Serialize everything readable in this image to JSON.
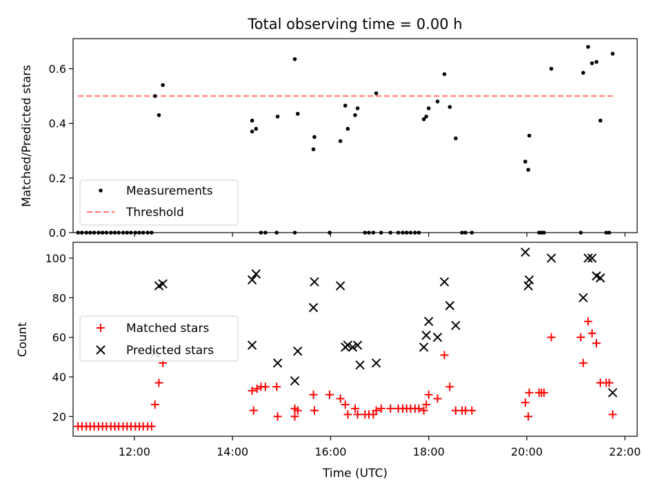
{
  "chart_data": {
    "title": "Total observing time = 0.00 h",
    "xlabel": "Time (UTC)",
    "x_tick_labels": [
      "12:00",
      "14:00",
      "16:00",
      "18:00",
      "20:00",
      "22:00"
    ],
    "x_ticks_hours": [
      12,
      14,
      16,
      18,
      20,
      22
    ],
    "xlim_hours": [
      10.75,
      22.25
    ],
    "panels": [
      {
        "id": "ratio",
        "type": "scatter",
        "ylabel": "Matched/Predicted stars",
        "ylim": [
          0,
          0.71
        ],
        "y_ticks": [
          0.0,
          0.2,
          0.4,
          0.6
        ],
        "y_tick_labels": [
          "0.0",
          "0.2",
          "0.4",
          "0.6"
        ],
        "legend_position": "lower-left",
        "series": [
          {
            "name": "Measurements",
            "marker": "dot",
            "color": "#000000",
            "points": [
              [
                10.85,
                0
              ],
              [
                10.93,
                0
              ],
              [
                11.02,
                0
              ],
              [
                11.1,
                0
              ],
              [
                11.18,
                0
              ],
              [
                11.27,
                0
              ],
              [
                11.35,
                0
              ],
              [
                11.43,
                0
              ],
              [
                11.52,
                0
              ],
              [
                11.6,
                0
              ],
              [
                11.68,
                0
              ],
              [
                11.77,
                0
              ],
              [
                11.85,
                0
              ],
              [
                11.93,
                0
              ],
              [
                12.02,
                0
              ],
              [
                12.1,
                0
              ],
              [
                12.18,
                0
              ],
              [
                12.27,
                0
              ],
              [
                12.35,
                0
              ],
              [
                12.42,
                0.5
              ],
              [
                12.5,
                0.43
              ],
              [
                12.58,
                0.54
              ],
              [
                14.4,
                0.41
              ],
              [
                14.4,
                0.37
              ],
              [
                14.48,
                0.38
              ],
              [
                14.58,
                0
              ],
              [
                14.67,
                0
              ],
              [
                14.9,
                0
              ],
              [
                14.92,
                0.425
              ],
              [
                15.27,
                0
              ],
              [
                15.27,
                0.635
              ],
              [
                15.33,
                0.435
              ],
              [
                15.65,
                0.305
              ],
              [
                15.67,
                0.35
              ],
              [
                15.98,
                0
              ],
              [
                16.2,
                0.335
              ],
              [
                16.3,
                0.465
              ],
              [
                16.35,
                0.38
              ],
              [
                16.5,
                0.43
              ],
              [
                16.55,
                0.455
              ],
              [
                16.7,
                0
              ],
              [
                16.78,
                0
              ],
              [
                16.87,
                0
              ],
              [
                16.93,
                0.51
              ],
              [
                17.03,
                0
              ],
              [
                17.22,
                0
              ],
              [
                17.38,
                0
              ],
              [
                17.47,
                0
              ],
              [
                17.55,
                0
              ],
              [
                17.63,
                0
              ],
              [
                17.72,
                0
              ],
              [
                17.8,
                0
              ],
              [
                17.9,
                0.415
              ],
              [
                17.95,
                0.425
              ],
              [
                18.0,
                0.455
              ],
              [
                18.18,
                0.48
              ],
              [
                18.32,
                0.58
              ],
              [
                18.43,
                0.46
              ],
              [
                18.55,
                0.345
              ],
              [
                18.68,
                0
              ],
              [
                18.75,
                0
              ],
              [
                18.88,
                0
              ],
              [
                19.97,
                0.26
              ],
              [
                20.03,
                0.23
              ],
              [
                20.05,
                0.355
              ],
              [
                20.25,
                0
              ],
              [
                20.3,
                0
              ],
              [
                20.35,
                0
              ],
              [
                20.5,
                0.6
              ],
              [
                21.1,
                0
              ],
              [
                21.15,
                0.585
              ],
              [
                21.25,
                0.68
              ],
              [
                21.33,
                0.62
              ],
              [
                21.42,
                0.625
              ],
              [
                21.5,
                0.41
              ],
              [
                21.62,
                0
              ],
              [
                21.68,
                0
              ],
              [
                21.75,
                0.655
              ]
            ]
          },
          {
            "name": "Threshold",
            "style": "dashed-line",
            "color": "#ff7070",
            "x": [
              10.85,
              21.75
            ],
            "y": [
              0.5,
              0.5
            ]
          }
        ]
      },
      {
        "id": "count",
        "type": "scatter",
        "ylabel": "Count",
        "ylim": [
          10,
          108
        ],
        "y_ticks": [
          20,
          40,
          60,
          80,
          100
        ],
        "y_tick_labels": [
          "20",
          "40",
          "60",
          "80",
          "100"
        ],
        "legend_position": "center-left",
        "series": [
          {
            "name": "Matched stars",
            "marker": "plus",
            "color": "#ff0000",
            "points": [
              [
                10.85,
                15
              ],
              [
                10.93,
                15
              ],
              [
                11.02,
                15
              ],
              [
                11.1,
                15
              ],
              [
                11.18,
                15
              ],
              [
                11.27,
                15
              ],
              [
                11.35,
                15
              ],
              [
                11.43,
                15
              ],
              [
                11.52,
                15
              ],
              [
                11.6,
                15
              ],
              [
                11.68,
                15
              ],
              [
                11.77,
                15
              ],
              [
                11.85,
                15
              ],
              [
                11.93,
                15
              ],
              [
                12.02,
                15
              ],
              [
                12.1,
                15
              ],
              [
                12.18,
                15
              ],
              [
                12.27,
                15
              ],
              [
                12.35,
                15
              ],
              [
                12.42,
                26
              ],
              [
                12.5,
                37
              ],
              [
                12.58,
                47
              ],
              [
                14.4,
                33
              ],
              [
                14.43,
                23
              ],
              [
                14.5,
                34
              ],
              [
                14.58,
                35
              ],
              [
                14.67,
                35
              ],
              [
                14.9,
                35
              ],
              [
                14.92,
                20
              ],
              [
                15.27,
                20
              ],
              [
                15.27,
                24
              ],
              [
                15.33,
                23
              ],
              [
                15.65,
                31
              ],
              [
                15.67,
                23
              ],
              [
                15.98,
                31
              ],
              [
                16.2,
                29
              ],
              [
                16.3,
                26
              ],
              [
                16.35,
                21
              ],
              [
                16.5,
                24
              ],
              [
                16.55,
                21
              ],
              [
                16.7,
                21
              ],
              [
                16.78,
                21
              ],
              [
                16.87,
                21
              ],
              [
                16.93,
                23
              ],
              [
                17.03,
                24
              ],
              [
                17.22,
                24
              ],
              [
                17.38,
                24
              ],
              [
                17.47,
                24
              ],
              [
                17.55,
                24
              ],
              [
                17.63,
                24
              ],
              [
                17.72,
                24
              ],
              [
                17.8,
                24
              ],
              [
                17.9,
                23
              ],
              [
                17.95,
                26
              ],
              [
                18.0,
                31
              ],
              [
                18.18,
                29
              ],
              [
                18.32,
                51
              ],
              [
                18.43,
                35
              ],
              [
                18.55,
                23
              ],
              [
                18.68,
                23
              ],
              [
                18.75,
                23
              ],
              [
                18.88,
                23
              ],
              [
                19.97,
                27
              ],
              [
                20.03,
                20
              ],
              [
                20.05,
                32
              ],
              [
                20.25,
                32
              ],
              [
                20.3,
                32
              ],
              [
                20.35,
                32
              ],
              [
                20.5,
                60
              ],
              [
                21.1,
                60
              ],
              [
                21.15,
                47
              ],
              [
                21.25,
                68
              ],
              [
                21.33,
                62
              ],
              [
                21.42,
                57
              ],
              [
                21.5,
                37
              ],
              [
                21.62,
                37
              ],
              [
                21.68,
                37
              ],
              [
                21.75,
                21
              ]
            ]
          },
          {
            "name": "Predicted stars",
            "marker": "x",
            "color": "#000000",
            "points": [
              [
                12.42,
                52
              ],
              [
                12.5,
                86
              ],
              [
                12.58,
                87
              ],
              [
                14.4,
                89
              ],
              [
                14.4,
                56
              ],
              [
                14.48,
                92
              ],
              [
                14.92,
                47
              ],
              [
                15.27,
                38
              ],
              [
                15.33,
                53
              ],
              [
                15.65,
                75
              ],
              [
                15.67,
                88
              ],
              [
                16.2,
                86
              ],
              [
                16.3,
                55
              ],
              [
                16.35,
                56
              ],
              [
                16.45,
                55
              ],
              [
                16.55,
                56
              ],
              [
                16.6,
                46
              ],
              [
                16.93,
                47
              ],
              [
                17.9,
                55
              ],
              [
                17.95,
                61
              ],
              [
                18.0,
                68
              ],
              [
                18.18,
                60
              ],
              [
                18.32,
                88
              ],
              [
                18.43,
                76
              ],
              [
                18.55,
                66
              ],
              [
                19.97,
                103
              ],
              [
                20.03,
                86
              ],
              [
                20.05,
                89
              ],
              [
                20.5,
                100
              ],
              [
                21.15,
                80
              ],
              [
                21.25,
                100
              ],
              [
                21.33,
                100
              ],
              [
                21.42,
                91
              ],
              [
                21.5,
                90
              ],
              [
                21.75,
                32
              ]
            ]
          }
        ]
      }
    ]
  }
}
